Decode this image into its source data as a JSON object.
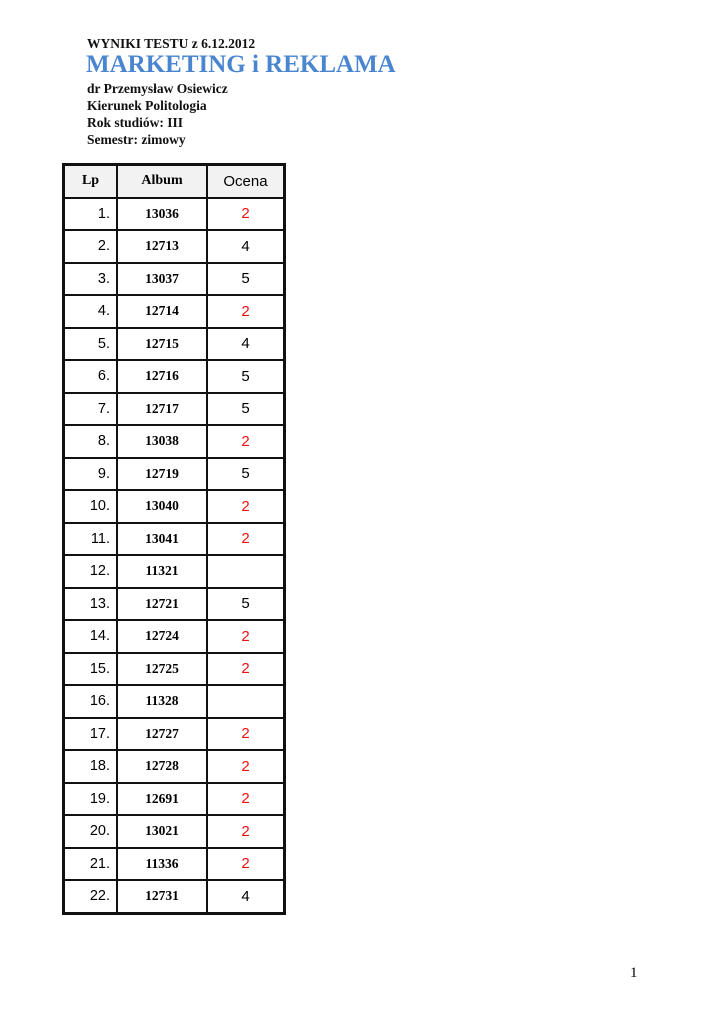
{
  "header": {
    "line1": "WYNIKI TESTU z 6.12.2012",
    "title": "MARKETING i REKLAMA",
    "lecturer": "dr Przemysław Osiewicz",
    "field": "Kierunek Politologia",
    "year": "Rok studiów: III",
    "semester": "Semestr: zimowy"
  },
  "colors": {
    "title": "#4a86d0",
    "failing_grade": "#ee1111"
  },
  "table": {
    "columns": [
      "Lp",
      "Album",
      "Ocena"
    ],
    "rows": [
      [
        "1.",
        "13036",
        "2"
      ],
      [
        "2.",
        "12713",
        "4"
      ],
      [
        "3.",
        "13037",
        "5"
      ],
      [
        "4.",
        "12714",
        "2"
      ],
      [
        "5.",
        "12715",
        "4"
      ],
      [
        "6.",
        "12716",
        "5"
      ],
      [
        "7.",
        "12717",
        "5"
      ],
      [
        "8.",
        "13038",
        "2"
      ],
      [
        "9.",
        "12719",
        "5"
      ],
      [
        "10.",
        "13040",
        "2"
      ],
      [
        "11.",
        "13041",
        "2"
      ],
      [
        "12.",
        "11321",
        ""
      ],
      [
        "13.",
        "12721",
        "5"
      ],
      [
        "14.",
        "12724",
        "2"
      ],
      [
        "15.",
        "12725",
        "2"
      ],
      [
        "16.",
        "11328",
        ""
      ],
      [
        "17.",
        "12727",
        "2"
      ],
      [
        "18.",
        "12728",
        "2"
      ],
      [
        "19.",
        "12691",
        "2"
      ],
      [
        "20.",
        "13021",
        "2"
      ],
      [
        "21.",
        "11336",
        "2"
      ],
      [
        "22.",
        "12731",
        "4"
      ]
    ]
  },
  "page_number": "1"
}
